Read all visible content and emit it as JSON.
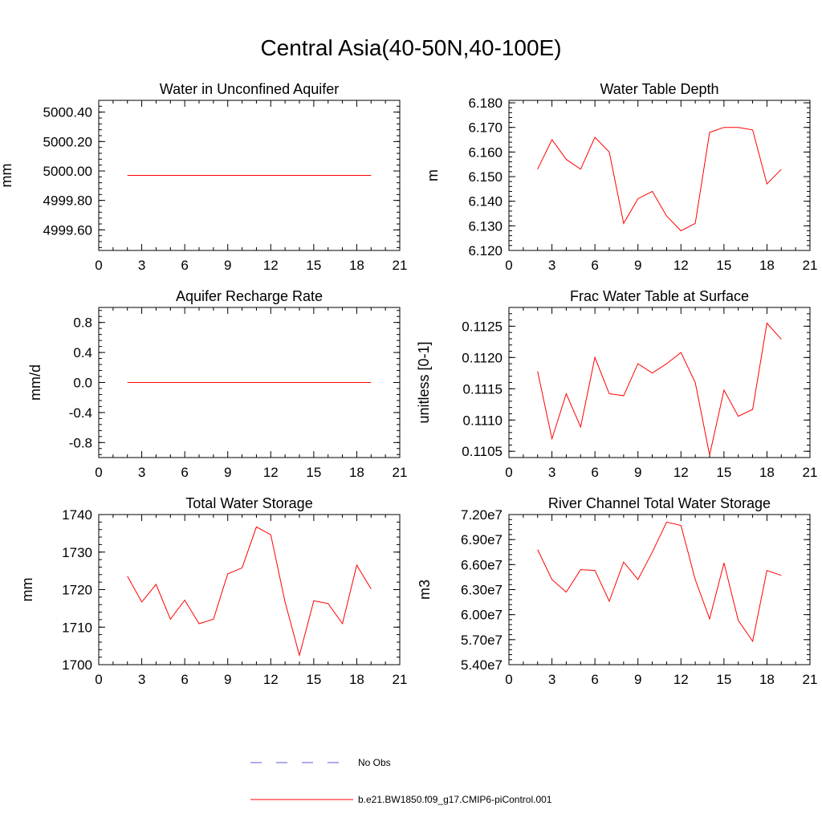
{
  "page": {
    "title": "Central Asia(40-50N,40-100E)"
  },
  "legend": {
    "entries": [
      {
        "label": "No Obs",
        "color": "#5a5ad6",
        "style": "dashed"
      },
      {
        "label": "b.e21.BW1850.f09_g17.CMIP6-piControl.001",
        "color": "#ff0000",
        "style": "solid"
      }
    ]
  },
  "chart_data": [
    {
      "type": "line",
      "title": "Water in Unconfined Aquifer",
      "ylabel": "mm",
      "xlim": [
        0,
        21
      ],
      "ylim": [
        4999.46,
        5000.48
      ],
      "xticks": [
        0,
        3,
        6,
        9,
        12,
        15,
        18,
        21
      ],
      "yticks": [
        5000.4,
        5000.2,
        5000.0,
        4999.8,
        4999.6
      ],
      "ytick_labels": [
        "5000.40",
        "5000.20",
        "5000.00",
        "4999.80",
        "4999.60"
      ],
      "series": [
        {
          "name": "b.e21.BW1850.f09_g17.CMIP6-piControl.001",
          "x": [
            2,
            3,
            4,
            5,
            6,
            7,
            8,
            9,
            10,
            11,
            12,
            13,
            14,
            15,
            16,
            17,
            18,
            19
          ],
          "y": [
            4999.97,
            4999.97,
            4999.97,
            4999.97,
            4999.97,
            4999.97,
            4999.97,
            4999.97,
            4999.97,
            4999.97,
            4999.97,
            4999.97,
            4999.97,
            4999.97,
            4999.97,
            4999.97,
            4999.97,
            4999.97
          ]
        }
      ]
    },
    {
      "type": "line",
      "title": "Water Table Depth",
      "ylabel": "m",
      "xlim": [
        0,
        21
      ],
      "ylim": [
        6.12,
        6.181
      ],
      "xticks": [
        0,
        3,
        6,
        9,
        12,
        15,
        18,
        21
      ],
      "yticks": [
        6.18,
        6.17,
        6.16,
        6.15,
        6.14,
        6.13,
        6.12
      ],
      "ytick_labels": [
        "6.180",
        "6.170",
        "6.160",
        "6.150",
        "6.140",
        "6.130",
        "6.120"
      ],
      "series": [
        {
          "name": "b.e21.BW1850.f09_g17.CMIP6-piControl.001",
          "x": [
            2,
            3,
            4,
            5,
            6,
            7,
            8,
            9,
            10,
            11,
            12,
            13,
            14,
            15,
            16,
            17,
            18,
            19
          ],
          "y": [
            6.153,
            6.165,
            6.157,
            6.153,
            6.166,
            6.16,
            6.131,
            6.141,
            6.144,
            6.134,
            6.128,
            6.131,
            6.168,
            6.17,
            6.17,
            6.169,
            6.147,
            6.153
          ]
        }
      ]
    },
    {
      "type": "line",
      "title": "Aquifer Recharge Rate",
      "ylabel": "mm/d",
      "xlim": [
        0,
        21
      ],
      "ylim": [
        -1.0,
        1.0
      ],
      "xticks": [
        0,
        3,
        6,
        9,
        12,
        15,
        18,
        21
      ],
      "yticks": [
        0.8,
        0.4,
        0.0,
        -0.4,
        -0.8
      ],
      "ytick_labels": [
        "0.8",
        "0.4",
        "0.0",
        "-0.4",
        "-0.8"
      ],
      "series": [
        {
          "name": "b.e21.BW1850.f09_g17.CMIP6-piControl.001",
          "x": [
            2,
            3,
            4,
            5,
            6,
            7,
            8,
            9,
            10,
            11,
            12,
            13,
            14,
            15,
            16,
            17,
            18,
            19
          ],
          "y": [
            0,
            0,
            0,
            0,
            0,
            0,
            0,
            0,
            0,
            0,
            0,
            0,
            0,
            0,
            0,
            0,
            0,
            0
          ]
        }
      ]
    },
    {
      "type": "line",
      "title": "Frac Water Table at Surface",
      "ylabel": "unitless [0-1]",
      "xlim": [
        0,
        21
      ],
      "ylim": [
        0.1104,
        0.1128
      ],
      "xticks": [
        0,
        3,
        6,
        9,
        12,
        15,
        18,
        21
      ],
      "yticks": [
        0.1125,
        0.112,
        0.1115,
        0.111,
        0.1105
      ],
      "ytick_labels": [
        "0.1125",
        "0.1120",
        "0.1115",
        "0.1110",
        "0.1105"
      ],
      "series": [
        {
          "name": "b.e21.BW1850.f09_g17.CMIP6-piControl.001",
          "x": [
            2,
            3,
            4,
            5,
            6,
            7,
            8,
            9,
            10,
            11,
            12,
            13,
            14,
            15,
            16,
            17,
            18,
            19
          ],
          "y": [
            0.11178,
            0.1107,
            0.11142,
            0.11089,
            0.112,
            0.11142,
            0.11139,
            0.1119,
            0.11175,
            0.1119,
            0.11208,
            0.1116,
            0.11044,
            0.11148,
            0.11106,
            0.11117,
            0.11255,
            0.11229
          ]
        }
      ]
    },
    {
      "type": "line",
      "title": "Total Water Storage",
      "ylabel": "mm",
      "xlim": [
        0,
        21
      ],
      "ylim": [
        1700,
        1740
      ],
      "xticks": [
        0,
        3,
        6,
        9,
        12,
        15,
        18,
        21
      ],
      "yticks": [
        1740,
        1730,
        1720,
        1710,
        1700
      ],
      "ytick_labels": [
        "1740",
        "1730",
        "1720",
        "1710",
        "1700"
      ],
      "series": [
        {
          "name": "b.e21.BW1850.f09_g17.CMIP6-piControl.001",
          "x": [
            2,
            3,
            4,
            5,
            6,
            7,
            8,
            9,
            10,
            11,
            12,
            13,
            14,
            15,
            16,
            17,
            18,
            19
          ],
          "y": [
            1723.6,
            1716.7,
            1721.4,
            1712.1,
            1717.2,
            1710.9,
            1712.1,
            1724.2,
            1725.8,
            1736.7,
            1734.6,
            1716.7,
            1702.5,
            1717.0,
            1716.3,
            1710.9,
            1726.5,
            1720.2
          ]
        }
      ]
    },
    {
      "type": "line",
      "title": "River Channel Total Water Storage",
      "ylabel": "m3",
      "xlim": [
        0,
        21
      ],
      "ylim": [
        54000000.0,
        72000000.0
      ],
      "xticks": [
        0,
        3,
        6,
        9,
        12,
        15,
        18,
        21
      ],
      "yticks": [
        72000000.0,
        69000000.0,
        66000000.0,
        63000000.0,
        60000000.0,
        57000000.0,
        54000000.0
      ],
      "ytick_labels": [
        "7.20e7",
        "6.90e7",
        "6.60e7",
        "6.30e7",
        "6.00e7",
        "5.70e7",
        "5.40e7"
      ],
      "series": [
        {
          "name": "b.e21.BW1850.f09_g17.CMIP6-piControl.001",
          "x": [
            2,
            3,
            4,
            5,
            6,
            7,
            8,
            9,
            10,
            11,
            12,
            13,
            14,
            15,
            16,
            17,
            18,
            19
          ],
          "y": [
            67800000.0,
            64200000.0,
            62700000.0,
            65400000.0,
            65300000.0,
            61600000.0,
            66300000.0,
            64200000.0,
            67500000.0,
            71100000.0,
            70700000.0,
            64200000.0,
            59500000.0,
            66200000.0,
            59300000.0,
            56800000.0,
            65300000.0,
            64700000.0
          ]
        }
      ]
    }
  ]
}
